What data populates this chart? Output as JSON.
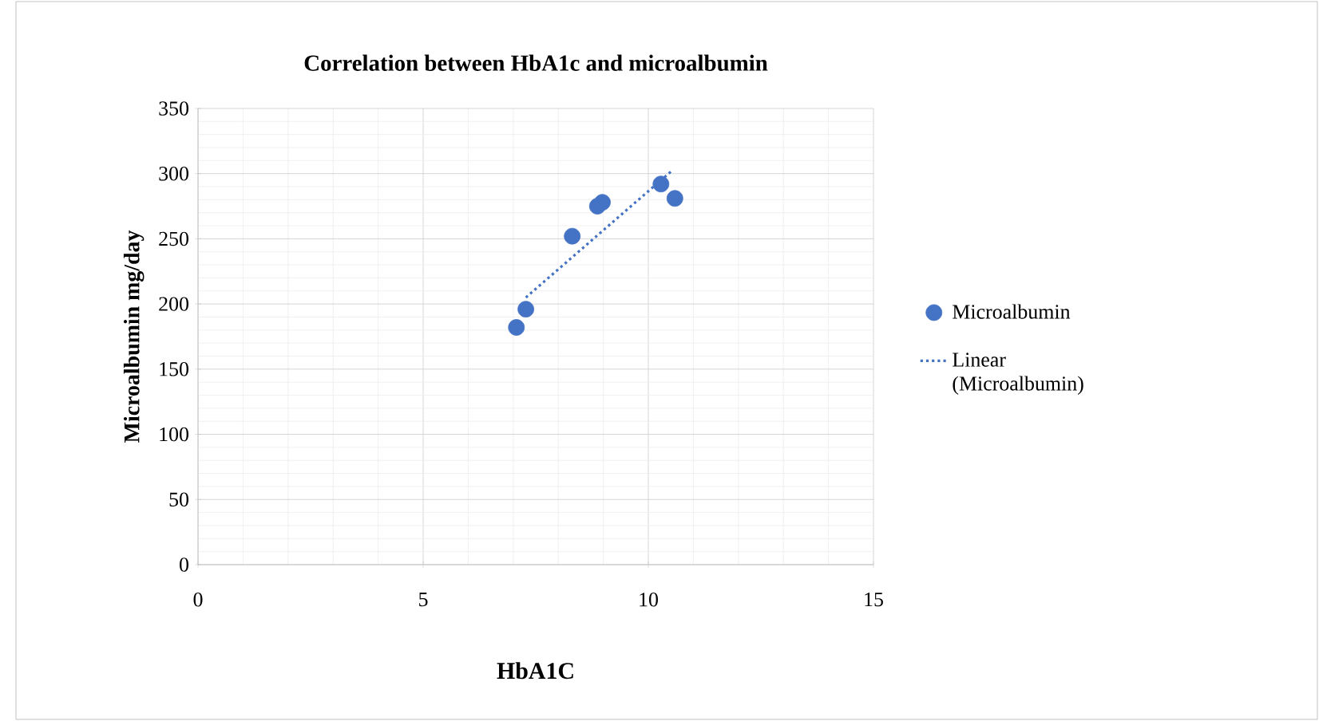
{
  "chart_data": {
    "type": "scatter",
    "title": "Correlation between HbA1c and microalbumin",
    "xlabel": "HbA1C",
    "ylabel": "Microalbumin mg/day",
    "xlim": [
      0,
      15
    ],
    "xticks": [
      0,
      5,
      10,
      15
    ],
    "ylim": [
      0,
      350
    ],
    "yticks": [
      0,
      50,
      100,
      150,
      200,
      250,
      300,
      350
    ],
    "grid": true,
    "legend": "right",
    "series": [
      {
        "name": "Microalbumin",
        "marker": "circle",
        "color": "#4472c4",
        "x": [
          7.07,
          7.28,
          8.31,
          8.87,
          8.98,
          10.28,
          10.59
        ],
        "values": [
          182,
          196,
          252,
          275,
          278,
          292,
          281
        ]
      },
      {
        "name": "Linear (Microalbumin)",
        "type": "line",
        "color": "#4472c4",
        "line_style": "dotted",
        "marker": "none",
        "x": [
          7.28,
          10.55
        ],
        "values": [
          205,
          303
        ]
      }
    ]
  }
}
